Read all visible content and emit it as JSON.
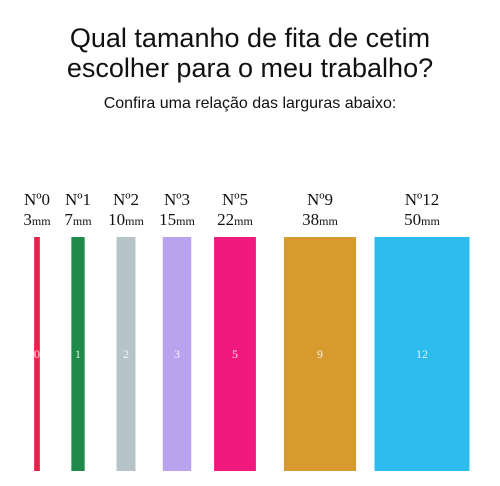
{
  "header": {
    "title_line1": "Qual tamanho de fita de cetim",
    "title_line2": "escolher para o meu trabalho?",
    "subtitle": "Confira uma relação das larguras abaixo:"
  },
  "ribbons": [
    {
      "name": "Nº0",
      "width": 3,
      "unit": "mm",
      "label": "0",
      "color": "#e8204a"
    },
    {
      "name": "Nº1",
      "width": 7,
      "unit": "mm",
      "label": "1",
      "color": "#1f8a4a"
    },
    {
      "name": "Nº2",
      "width": 10,
      "unit": "mm",
      "label": "2",
      "color": "#b6c4c9"
    },
    {
      "name": "Nº3",
      "width": 15,
      "unit": "mm",
      "label": "3",
      "color": "#b9a3ef"
    },
    {
      "name": "Nº5",
      "width": 22,
      "unit": "mm",
      "label": "5",
      "color": "#f0197d"
    },
    {
      "name": "Nº9",
      "width": 38,
      "unit": "mm",
      "label": "9",
      "color": "#d69a2e"
    },
    {
      "name": "Nº12",
      "width": 50,
      "unit": "mm",
      "label": "12",
      "color": "#2ebcef"
    }
  ]
}
